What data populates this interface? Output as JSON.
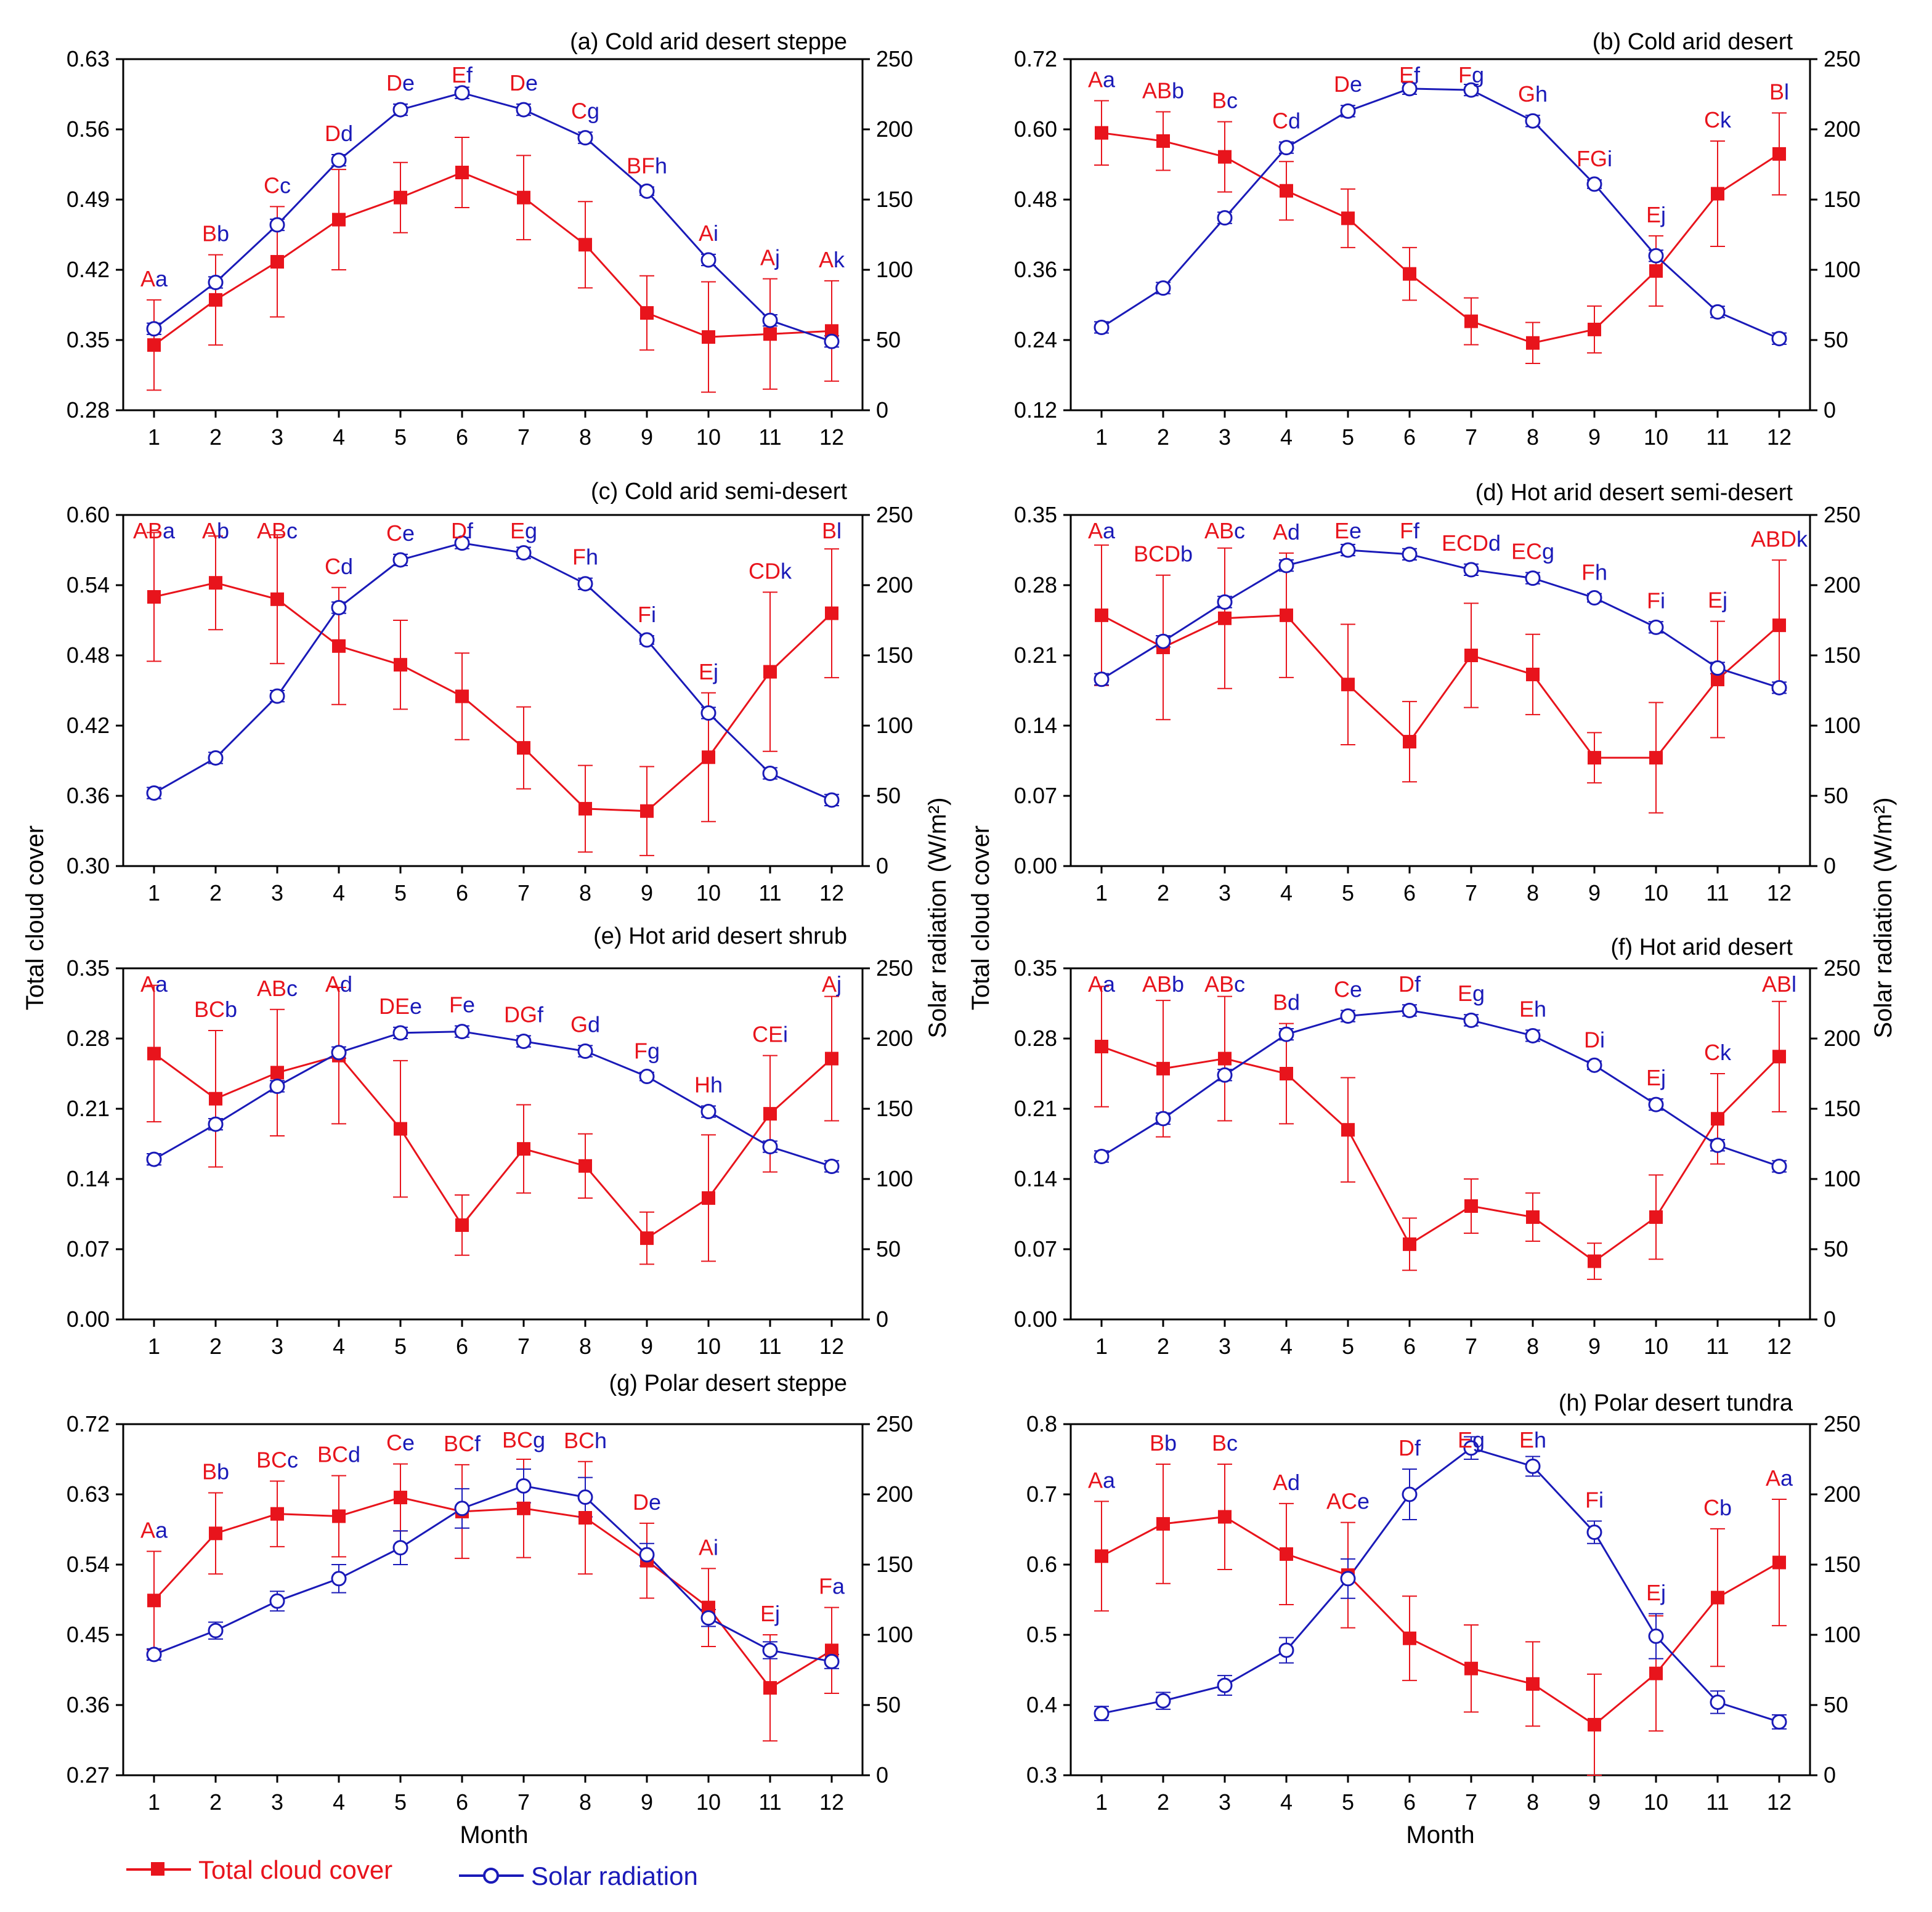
{
  "chart_data": {
    "type": "line",
    "layout": "4 rows x 2 columns of dual-axis panels",
    "shared_xlabel": "Month",
    "left_ylabel": "Total cloud cover",
    "right_ylabel": "Solar radiation (W/m²)",
    "legend": [
      {
        "name": "Total cloud cover",
        "color": "#e8141c",
        "marker": "filled-square"
      },
      {
        "name": "Solar radiation",
        "color": "#1a1ab8",
        "marker": "open-circle"
      }
    ],
    "colors": {
      "cloud": "#e8141c",
      "solar": "#1a1ab8"
    },
    "panels": [
      {
        "title": "(a) Cold arid desert steppe",
        "x": [
          1,
          2,
          3,
          4,
          5,
          6,
          7,
          8,
          9,
          10,
          11,
          12
        ],
        "left_ticks": [
          "0.28",
          "0.35",
          "0.42",
          "0.49",
          "0.56",
          "0.63"
        ],
        "left_ylim": [
          0.28,
          0.63
        ],
        "right_ticks": [
          "0",
          "50",
          "100",
          "150",
          "200",
          "250"
        ],
        "right_ylim": [
          0,
          250
        ],
        "cloud": [
          0.345,
          0.39,
          0.428,
          0.47,
          0.492,
          0.517,
          0.492,
          0.445,
          0.377,
          0.353,
          0.356,
          0.359
        ],
        "cloud_err": [
          0.045,
          0.045,
          0.055,
          0.05,
          0.035,
          0.035,
          0.042,
          0.043,
          0.037,
          0.055,
          0.055,
          0.05
        ],
        "solar": [
          58,
          91,
          132,
          178,
          214,
          226,
          214,
          194,
          156,
          107,
          64,
          49
        ],
        "solar_err": [
          4,
          4,
          4,
          4,
          4,
          4,
          4,
          4,
          3,
          4,
          4,
          4
        ],
        "labels": [
          [
            "A",
            "a"
          ],
          [
            "B",
            "b"
          ],
          [
            "C",
            "c"
          ],
          [
            "D",
            "d"
          ],
          [
            "D",
            "e"
          ],
          [
            "E",
            "f"
          ],
          [
            "D",
            "e"
          ],
          [
            "C",
            "g"
          ],
          [
            "BF",
            "h"
          ],
          [
            "A",
            "i"
          ],
          [
            "A",
            "j"
          ],
          [
            "A",
            "k"
          ]
        ]
      },
      {
        "title": "(b) Cold arid desert",
        "x": [
          1,
          2,
          3,
          4,
          5,
          6,
          7,
          8,
          9,
          10,
          11,
          12
        ],
        "left_ticks": [
          "0.12",
          "0.24",
          "0.36",
          "0.48",
          "0.60",
          "0.72"
        ],
        "left_ylim": [
          0.12,
          0.72
        ],
        "right_ticks": [
          "0",
          "50",
          "100",
          "150",
          "200",
          "250"
        ],
        "right_ylim": [
          0,
          250
        ],
        "cloud": [
          0.594,
          0.58,
          0.553,
          0.495,
          0.448,
          0.353,
          0.272,
          0.235,
          0.258,
          0.358,
          0.49,
          0.558
        ],
        "cloud_err": [
          0.055,
          0.05,
          0.06,
          0.05,
          0.05,
          0.045,
          0.04,
          0.035,
          0.04,
          0.06,
          0.09,
          0.07
        ],
        "solar": [
          59,
          87,
          137,
          187,
          213,
          229,
          228,
          206,
          161,
          110,
          70,
          51
        ],
        "solar_err": [
          4,
          4,
          4,
          4,
          4,
          4,
          4,
          4,
          3,
          4,
          4,
          4
        ],
        "labels": [
          [
            "A",
            "a"
          ],
          [
            "AB",
            "b"
          ],
          [
            "B",
            "c"
          ],
          [
            "C",
            "d"
          ],
          [
            "D",
            "e"
          ],
          [
            "E",
            "f"
          ],
          [
            "F",
            "g"
          ],
          [
            "G",
            "h"
          ],
          [
            "FG",
            "i"
          ],
          [
            "E",
            "j"
          ],
          [
            "C",
            "k"
          ],
          [
            "B",
            "l"
          ]
        ]
      },
      {
        "title": "(c) Cold arid semi-desert",
        "x": [
          1,
          2,
          3,
          4,
          5,
          6,
          7,
          8,
          9,
          10,
          11,
          12
        ],
        "left_ticks": [
          "0.30",
          "0.36",
          "0.42",
          "0.48",
          "0.54",
          "0.60"
        ],
        "left_ylim": [
          0.3,
          0.6
        ],
        "right_ticks": [
          "0",
          "50",
          "100",
          "150",
          "200",
          "250"
        ],
        "right_ylim": [
          0,
          250
        ],
        "cloud": [
          0.53,
          0.542,
          0.528,
          0.488,
          0.472,
          0.445,
          0.401,
          0.349,
          0.347,
          0.393,
          0.466,
          0.516
        ],
        "cloud_err": [
          0.055,
          0.04,
          0.055,
          0.05,
          0.038,
          0.037,
          0.035,
          0.037,
          0.038,
          0.055,
          0.068,
          0.055
        ],
        "solar": [
          52,
          77,
          121,
          184,
          218,
          230,
          223,
          201,
          161,
          109,
          66,
          47
        ],
        "solar_err": [
          4,
          4,
          4,
          4,
          4,
          4,
          4,
          4,
          3,
          4,
          4,
          4
        ],
        "labels": [
          [
            "AB",
            "a"
          ],
          [
            "A",
            "b"
          ],
          [
            "AB",
            "c"
          ],
          [
            "C",
            "d"
          ],
          [
            "C",
            "e"
          ],
          [
            "D",
            "f"
          ],
          [
            "E",
            "g"
          ],
          [
            "F",
            "h"
          ],
          [
            "F",
            "i"
          ],
          [
            "E",
            "j"
          ],
          [
            "CD",
            "k"
          ],
          [
            "B",
            "l"
          ]
        ]
      },
      {
        "title": "(d) Hot arid desert semi-desert",
        "x": [
          1,
          2,
          3,
          4,
          5,
          6,
          7,
          8,
          9,
          10,
          11,
          12
        ],
        "left_ticks": [
          "0.00",
          "0.07",
          "0.14",
          "0.21",
          "0.28",
          "0.35"
        ],
        "left_ylim": [
          0.0,
          0.35
        ],
        "right_ticks": [
          "0",
          "50",
          "100",
          "150",
          "200",
          "250"
        ],
        "right_ylim": [
          0,
          250
        ],
        "cloud": [
          0.25,
          0.218,
          0.247,
          0.25,
          0.181,
          0.124,
          0.21,
          0.191,
          0.108,
          0.108,
          0.186,
          0.24
        ],
        "cloud_err": [
          0.07,
          0.072,
          0.07,
          0.062,
          0.06,
          0.04,
          0.052,
          0.04,
          0.025,
          0.055,
          0.058,
          0.065
        ],
        "solar": [
          133,
          160,
          188,
          214,
          225,
          222,
          211,
          205,
          191,
          170,
          141,
          127
        ],
        "solar_err": [
          4,
          4,
          4,
          4,
          4,
          4,
          4,
          4,
          3,
          4,
          4,
          4
        ],
        "labels": [
          [
            "A",
            "a"
          ],
          [
            "BCD",
            "b"
          ],
          [
            "AB",
            "c"
          ],
          [
            "A",
            "d"
          ],
          [
            "E",
            "e"
          ],
          [
            "F",
            "f"
          ],
          [
            "ECD",
            "d"
          ],
          [
            "EC",
            "g"
          ],
          [
            "F",
            "h"
          ],
          [
            "F",
            "i"
          ],
          [
            "E",
            "j"
          ],
          [
            "ABD",
            "k"
          ]
        ]
      },
      {
        "title": "(e) Hot arid desert shrub",
        "x": [
          1,
          2,
          3,
          4,
          5,
          6,
          7,
          8,
          9,
          10,
          11,
          12
        ],
        "left_ticks": [
          "0.00",
          "0.07",
          "0.14",
          "0.21",
          "0.28",
          "0.35"
        ],
        "left_ylim": [
          0.0,
          0.35
        ],
        "right_ticks": [
          "0",
          "50",
          "100",
          "150",
          "200",
          "250"
        ],
        "right_ylim": [
          0,
          250
        ],
        "cloud": [
          0.265,
          0.22,
          0.246,
          0.263,
          0.19,
          0.094,
          0.17,
          0.153,
          0.081,
          0.121,
          0.205,
          0.26
        ],
        "cloud_err": [
          0.068,
          0.068,
          0.063,
          0.068,
          0.068,
          0.03,
          0.044,
          0.032,
          0.026,
          0.063,
          0.058,
          0.062
        ],
        "solar": [
          114,
          139,
          166,
          190,
          204,
          205,
          198,
          191,
          173,
          148,
          123,
          109
        ],
        "solar_err": [
          4,
          4,
          4,
          4,
          4,
          4,
          4,
          4,
          3,
          4,
          4,
          4
        ],
        "labels": [
          [
            "A",
            "a"
          ],
          [
            "BC",
            "b"
          ],
          [
            "AB",
            "c"
          ],
          [
            "A",
            "d"
          ],
          [
            "DE",
            "e"
          ],
          [
            "F",
            "e"
          ],
          [
            "DG",
            "f"
          ],
          [
            "G",
            "d"
          ],
          [
            "F",
            "g"
          ],
          [
            "H",
            "h"
          ],
          [
            "CE",
            "i"
          ],
          [
            "A",
            "j"
          ]
        ]
      },
      {
        "title": "(f) Hot arid desert",
        "x": [
          1,
          2,
          3,
          4,
          5,
          6,
          7,
          8,
          9,
          10,
          11,
          12
        ],
        "left_ticks": [
          "0.00",
          "0.07",
          "0.14",
          "0.21",
          "0.28",
          "0.35"
        ],
        "left_ylim": [
          0.0,
          0.35
        ],
        "right_ticks": [
          "0",
          "50",
          "100",
          "150",
          "200",
          "250"
        ],
        "right_ylim": [
          0,
          250
        ],
        "cloud": [
          0.272,
          0.25,
          0.26,
          0.245,
          0.189,
          0.075,
          0.113,
          0.102,
          0.058,
          0.102,
          0.2,
          0.262
        ],
        "cloud_err": [
          0.06,
          0.068,
          0.062,
          0.05,
          0.052,
          0.026,
          0.027,
          0.024,
          0.018,
          0.042,
          0.045,
          0.055
        ],
        "solar": [
          116,
          143,
          174,
          203,
          216,
          220,
          213,
          202,
          181,
          153,
          124,
          109
        ],
        "solar_err": [
          4,
          4,
          4,
          4,
          4,
          4,
          4,
          4,
          3,
          4,
          4,
          4
        ],
        "labels": [
          [
            "A",
            "a"
          ],
          [
            "AB",
            "b"
          ],
          [
            "AB",
            "c"
          ],
          [
            "B",
            "d"
          ],
          [
            "C",
            "e"
          ],
          [
            "D",
            "f"
          ],
          [
            "E",
            "g"
          ],
          [
            "E",
            "h"
          ],
          [
            "D",
            "i"
          ],
          [
            "E",
            "j"
          ],
          [
            "C",
            "k"
          ],
          [
            "AB",
            "l"
          ]
        ]
      },
      {
        "title": "(g) Polar desert steppe",
        "x": [
          1,
          2,
          3,
          4,
          5,
          6,
          7,
          8,
          9,
          10,
          11,
          12
        ],
        "left_ticks": [
          "0.27",
          "0.36",
          "0.45",
          "0.54",
          "0.63",
          "0.72"
        ],
        "left_ylim": [
          0.27,
          0.72
        ],
        "right_ticks": [
          "0",
          "50",
          "100",
          "150",
          "200",
          "250"
        ],
        "right_ylim": [
          0,
          250
        ],
        "cloud": [
          0.494,
          0.58,
          0.605,
          0.602,
          0.626,
          0.608,
          0.612,
          0.6,
          0.545,
          0.485,
          0.382,
          0.43
        ],
        "cloud_err": [
          0.063,
          0.052,
          0.042,
          0.052,
          0.043,
          0.06,
          0.063,
          0.072,
          0.048,
          0.05,
          0.068,
          0.055
        ],
        "solar": [
          86,
          103,
          124,
          140,
          162,
          190,
          206,
          198,
          157,
          112,
          89,
          81
        ],
        "solar_err": [
          4,
          6,
          7,
          10,
          12,
          14,
          12,
          14,
          8,
          6,
          6,
          5
        ],
        "labels": [
          [
            "A",
            "a"
          ],
          [
            "B",
            "b"
          ],
          [
            "BC",
            "c"
          ],
          [
            "BC",
            "d"
          ],
          [
            "C",
            "e"
          ],
          [
            "BC",
            "f"
          ],
          [
            "BC",
            "g"
          ],
          [
            "BC",
            "h"
          ],
          [
            "D",
            "e"
          ],
          [
            "A",
            "i"
          ],
          [
            "E",
            "j"
          ],
          [
            "F",
            "a"
          ]
        ]
      },
      {
        "title": "(h) Polar desert tundra",
        "x": [
          1,
          2,
          3,
          4,
          5,
          6,
          7,
          8,
          9,
          10,
          11,
          12
        ],
        "left_ticks": [
          "0.3",
          "0.4",
          "0.5",
          "0.6",
          "0.7",
          "0.8"
        ],
        "left_ylim": [
          0.3,
          0.8
        ],
        "right_ticks": [
          "0",
          "50",
          "100",
          "150",
          "200",
          "250"
        ],
        "right_ylim": [
          0,
          250
        ],
        "cloud": [
          0.612,
          0.658,
          0.668,
          0.615,
          0.585,
          0.495,
          0.452,
          0.43,
          0.372,
          0.445,
          0.553,
          0.603
        ],
        "cloud_err": [
          0.078,
          0.085,
          0.075,
          0.072,
          0.075,
          0.06,
          0.062,
          0.06,
          0.072,
          0.082,
          0.098,
          0.09
        ],
        "solar": [
          44,
          53,
          64,
          89,
          140,
          200,
          233,
          220,
          173,
          99,
          52,
          38
        ],
        "solar_err": [
          5,
          6,
          7,
          9,
          14,
          18,
          8,
          7,
          8,
          16,
          8,
          5
        ],
        "labels": [
          [
            "A",
            "a"
          ],
          [
            "B",
            "b"
          ],
          [
            "B",
            "c"
          ],
          [
            "A",
            "d"
          ],
          [
            "AC",
            "e"
          ],
          [
            "D",
            "f"
          ],
          [
            "E",
            "g"
          ],
          [
            "E",
            "h"
          ],
          [
            "F",
            "i"
          ],
          [
            "E",
            "j"
          ],
          [
            "C",
            "b"
          ],
          [
            "A",
            "a"
          ]
        ]
      }
    ]
  }
}
